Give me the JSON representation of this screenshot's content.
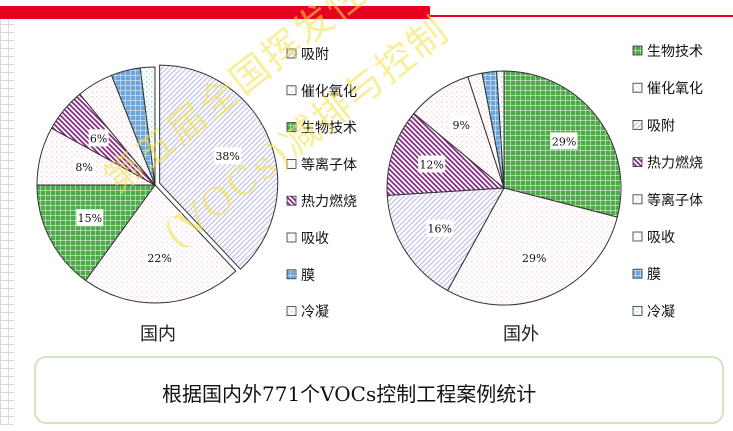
{
  "caption": "根据国内外771个VOCs控制工程案例统计",
  "watermark": {
    "line1": "第五届全国挥发性有机污染控制研讨会议",
    "line2": "(VOCs)减排与控制"
  },
  "chart_data": [
    {
      "type": "pie",
      "title": "国内",
      "legend_position": "right",
      "slices": [
        {
          "name": "吸附",
          "value": 38,
          "color": "#c8c8ea",
          "pattern": "diag-right",
          "label": "38%"
        },
        {
          "name": "吸收",
          "value": 22,
          "color": "#f6dbe1",
          "pattern": "dots",
          "label": "22%"
        },
        {
          "name": "生物技术",
          "value": 15,
          "color": "#4faa4a",
          "pattern": "grid",
          "label": "15%"
        },
        {
          "name": "等离子体",
          "value": 8,
          "color": "#f3d2dc",
          "pattern": "dots",
          "label": "8%"
        },
        {
          "name": "热力燃烧",
          "value": 6,
          "color": "#8b2a8b",
          "pattern": "diag-left",
          "label": "6%"
        },
        {
          "name": "催化氧化",
          "value": 5,
          "color": "#f5d5d0",
          "pattern": "dots",
          "label": ""
        },
        {
          "name": "膜",
          "value": 4,
          "color": "#6fa5d9",
          "pattern": "grid",
          "label": ""
        },
        {
          "name": "冷凝",
          "value": 2,
          "color": "#9fd8e0",
          "pattern": "dots",
          "label": ""
        }
      ],
      "legend": [
        "吸附",
        "催化氧化",
        "生物技术",
        "等离子体",
        "热力燃烧",
        "吸收",
        "膜",
        "冷凝"
      ]
    },
    {
      "type": "pie",
      "title": "国外",
      "legend_position": "right",
      "slices": [
        {
          "name": "生物技术",
          "value": 29,
          "color": "#4faa4a",
          "pattern": "grid",
          "label": "29%"
        },
        {
          "name": "吸收",
          "value": 29,
          "color": "#f6dbe1",
          "pattern": "dots",
          "label": "29%"
        },
        {
          "name": "吸附",
          "value": 16,
          "color": "#c8c8ea",
          "pattern": "diag-right",
          "label": "16%"
        },
        {
          "name": "热力燃烧",
          "value": 12,
          "color": "#8b2a8b",
          "pattern": "diag-left",
          "label": "12%"
        },
        {
          "name": "等离子体",
          "value": 9,
          "color": "#f3d2dc",
          "pattern": "dots",
          "label": "9%"
        },
        {
          "name": "催化氧化",
          "value": 2,
          "color": "#f5d5d0",
          "pattern": "dots",
          "label": ""
        },
        {
          "name": "膜",
          "value": 2,
          "color": "#6fa5d9",
          "pattern": "grid",
          "label": ""
        },
        {
          "name": "冷凝",
          "value": 1,
          "color": "#9fd8e0",
          "pattern": "dots",
          "label": ""
        }
      ],
      "legend": [
        "生物技术",
        "催化氧化",
        "吸附",
        "热力燃烧",
        "等离子体",
        "吸收",
        "膜",
        "冷凝"
      ]
    }
  ]
}
